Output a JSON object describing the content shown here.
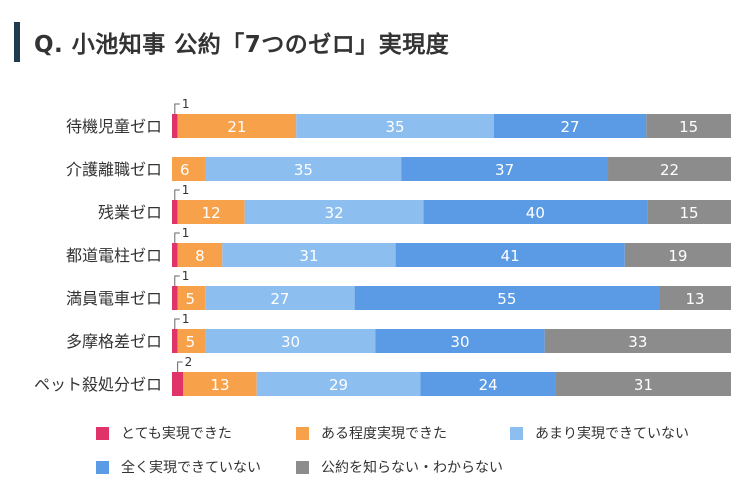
{
  "title": "Q. 小池知事 公約「7つのゼロ」実現度",
  "colors": {
    "title_bar": "#1f3b4d",
    "series": [
      "#e0336a",
      "#f7a24a",
      "#8cbef0",
      "#5b9be6",
      "#8c8c8c"
    ]
  },
  "chart_data": {
    "type": "bar",
    "orientation": "horizontal",
    "stacked": true,
    "percent": true,
    "title": "Q. 小池知事 公約「7つのゼロ」実現度",
    "categories": [
      "待機児童ゼロ",
      "介護離職ゼロ",
      "残業ゼロ",
      "都道電柱ゼロ",
      "満員電車ゼロ",
      "多摩格差ゼロ",
      "ペット殺処分ゼロ"
    ],
    "series": [
      {
        "name": "とても実現できた",
        "values": [
          1,
          0,
          1,
          1,
          1,
          1,
          2
        ]
      },
      {
        "name": "ある程度実現できた",
        "values": [
          21,
          6,
          12,
          8,
          5,
          5,
          13
        ]
      },
      {
        "name": "あまり実現できていない",
        "values": [
          35,
          35,
          32,
          31,
          27,
          30,
          29
        ]
      },
      {
        "name": "全く実現できていない",
        "values": [
          27,
          37,
          40,
          41,
          55,
          30,
          24
        ]
      },
      {
        "name": "公約を知らない・わからない",
        "values": [
          15,
          22,
          15,
          19,
          13,
          33,
          31
        ]
      }
    ],
    "xlim": [
      0,
      100
    ],
    "grid": false,
    "legend_position": "bottom"
  }
}
